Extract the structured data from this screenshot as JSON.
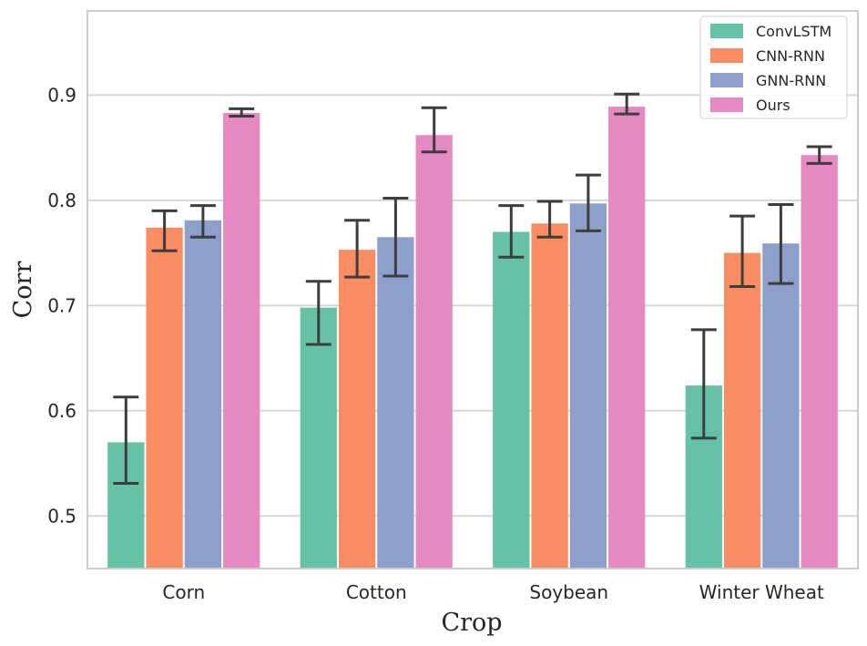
{
  "chart_data": {
    "type": "bar",
    "title": "",
    "xlabel": "Crop",
    "ylabel": "Corr",
    "ylim": [
      0.45,
      0.98
    ],
    "yticks": [
      0.5,
      0.6,
      0.7,
      0.8,
      0.9
    ],
    "ytick_labels": [
      "0.5",
      "0.6",
      "0.7",
      "0.8",
      "0.9"
    ],
    "grid": "horizontal",
    "legend_position": "top-right",
    "categories": [
      "Corn",
      "Cotton",
      "Soybean",
      "Winter Wheat"
    ],
    "series": [
      {
        "name": "ConvLSTM",
        "color": "#66c2a5",
        "values": [
          0.57,
          0.698,
          0.77,
          0.624
        ],
        "err_low": [
          0.531,
          0.663,
          0.746,
          0.574
        ],
        "err_high": [
          0.613,
          0.723,
          0.795,
          0.677
        ]
      },
      {
        "name": "CNN-RNN",
        "color": "#fc8d62",
        "values": [
          0.774,
          0.753,
          0.778,
          0.75
        ],
        "err_low": [
          0.752,
          0.727,
          0.765,
          0.718
        ],
        "err_high": [
          0.79,
          0.781,
          0.799,
          0.785
        ]
      },
      {
        "name": "GNN-RNN",
        "color": "#8da0cb",
        "values": [
          0.781,
          0.765,
          0.797,
          0.759
        ],
        "err_low": [
          0.765,
          0.728,
          0.771,
          0.721
        ],
        "err_high": [
          0.795,
          0.802,
          0.824,
          0.796
        ]
      },
      {
        "name": "Ours",
        "color": "#e78ac3",
        "values": [
          0.883,
          0.862,
          0.889,
          0.843
        ],
        "err_low": [
          0.88,
          0.846,
          0.882,
          0.835
        ],
        "err_high": [
          0.887,
          0.888,
          0.901,
          0.851
        ]
      }
    ]
  }
}
